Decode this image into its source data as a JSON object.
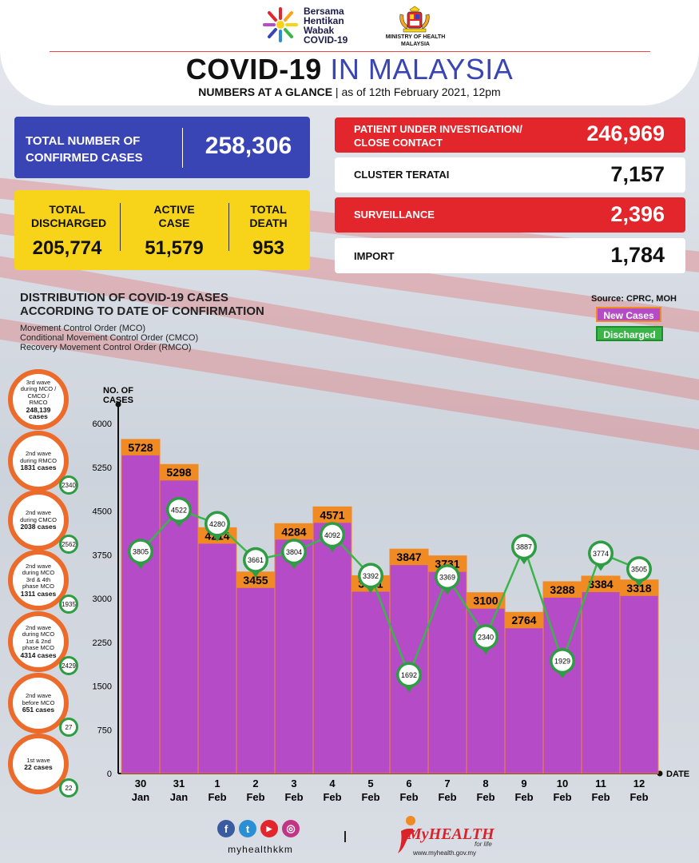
{
  "header": {
    "campaign_logo_text": [
      "Bersama",
      "Hentikan",
      "Wabak",
      "COVID-19"
    ],
    "ministry": "MINISTRY OF HEALTH MALAYSIA",
    "title_part1": "COVID-19",
    "title_part2": "IN MALAYSIA",
    "subtitle_bold": "NUMBERS AT A GLANCE",
    "subtitle_rest": "| as of 12th February 2021, 12pm"
  },
  "confirmed": {
    "label": "TOTAL NUMBER OF CONFIRMED CASES",
    "value": "258,306"
  },
  "summary": [
    {
      "label": "TOTAL DISCHARGED",
      "value": "205,774"
    },
    {
      "label": "ACTIVE CASE",
      "value": "51,579"
    },
    {
      "label": "TOTAL DEATH",
      "value": "953"
    }
  ],
  "categories_box": [
    {
      "label": "PATIENT UNDER INVESTIGATION/ CLOSE CONTACT",
      "value": "246,969",
      "style": "red"
    },
    {
      "label": "CLUSTER TERATAI",
      "value": "7,157",
      "style": "white"
    },
    {
      "label": "SURVEILLANCE",
      "value": "2,396",
      "style": "red"
    },
    {
      "label": "IMPORT",
      "value": "1,784",
      "style": "white"
    }
  ],
  "chart_heading": {
    "title": "DISTRIBUTION OF COVID-19 CASES ACCORDING TO DATE OF CONFIRMATION",
    "notes": [
      "Movement Control Order (MCO)",
      "Conditional Movement Control Order (CMCO)",
      "Recovery Movement Control Order (RMCO)"
    ],
    "source": "Source: CPRC, MOH"
  },
  "waves": [
    {
      "text": "3rd wave during MCO / CMCO / RMCO",
      "cases": "248,139",
      "suffix": "cases",
      "discharged": ""
    },
    {
      "text": "2nd wave during RMCO",
      "cases": "1831",
      "suffix": "cases",
      "discharged": "2340"
    },
    {
      "text": "2nd wave during CMCO",
      "cases": "2038",
      "suffix": "cases",
      "discharged": "2562"
    },
    {
      "text": "2nd wave during MCO 3rd & 4th phase MCO",
      "cases": "1311",
      "suffix": "cases",
      "discharged": "1935"
    },
    {
      "text": "2nd wave during MCO 1st & 2nd phase MCO",
      "cases": "4314",
      "suffix": "cases",
      "discharged": "2429"
    },
    {
      "text": "2nd wave before MCO",
      "cases": "651",
      "suffix": "cases",
      "discharged": "27"
    },
    {
      "text": "1st wave",
      "cases": "22",
      "suffix": "cases",
      "discharged": "22"
    }
  ],
  "chart_data": {
    "type": "bar",
    "categories": [
      "30 Jan",
      "31 Jan",
      "1 Feb",
      "2 Feb",
      "3 Feb",
      "4 Feb",
      "5 Feb",
      "6 Feb",
      "7 Feb",
      "8 Feb",
      "9 Feb",
      "10 Feb",
      "11 Feb",
      "12 Feb"
    ],
    "category_lines": [
      [
        "30",
        "Jan"
      ],
      [
        "31",
        "Jan"
      ],
      [
        "1",
        "Feb"
      ],
      [
        "2",
        "Feb"
      ],
      [
        "3",
        "Feb"
      ],
      [
        "4",
        "Feb"
      ],
      [
        "5",
        "Feb"
      ],
      [
        "6",
        "Feb"
      ],
      [
        "7",
        "Feb"
      ],
      [
        "8",
        "Feb"
      ],
      [
        "9",
        "Feb"
      ],
      [
        "10",
        "Feb"
      ],
      [
        "11",
        "Feb"
      ],
      [
        "12",
        "Feb"
      ]
    ],
    "series": [
      {
        "name": "New Cases",
        "type": "bar",
        "values": [
          5728,
          5298,
          4214,
          3455,
          4284,
          4571,
          3391,
          3847,
          3731,
          3100,
          2764,
          3288,
          3384,
          3318
        ],
        "color": "#b64bc8"
      },
      {
        "name": "Discharged",
        "type": "line",
        "values": [
          3805,
          4522,
          4280,
          3661,
          3804,
          4092,
          3392,
          1692,
          3369,
          2340,
          3887,
          1929,
          3774,
          3505
        ],
        "color": "#3bb54a"
      }
    ],
    "ylabel": "NO. OF CASES",
    "xlabel": "DATE",
    "yticks": [
      0,
      750,
      1500,
      2250,
      3000,
      3750,
      4500,
      5250,
      6000
    ],
    "ylim": [
      0,
      6000
    ],
    "legend": "top-right"
  },
  "footer": {
    "handle": "myhealthkkm",
    "social": [
      "f",
      "t",
      "▶",
      "◎"
    ],
    "brand": "MyHEALTH",
    "tagline": "for life",
    "url": "www.myhealth.gov.my"
  },
  "colors": {
    "blue": "#3a45b5",
    "yellow": "#f7d31a",
    "red": "#e3262b",
    "bar": "#b64bc8",
    "bar_label": "#f08a23",
    "line": "#3bb54a",
    "wave_ring": "#ec6a2a"
  }
}
